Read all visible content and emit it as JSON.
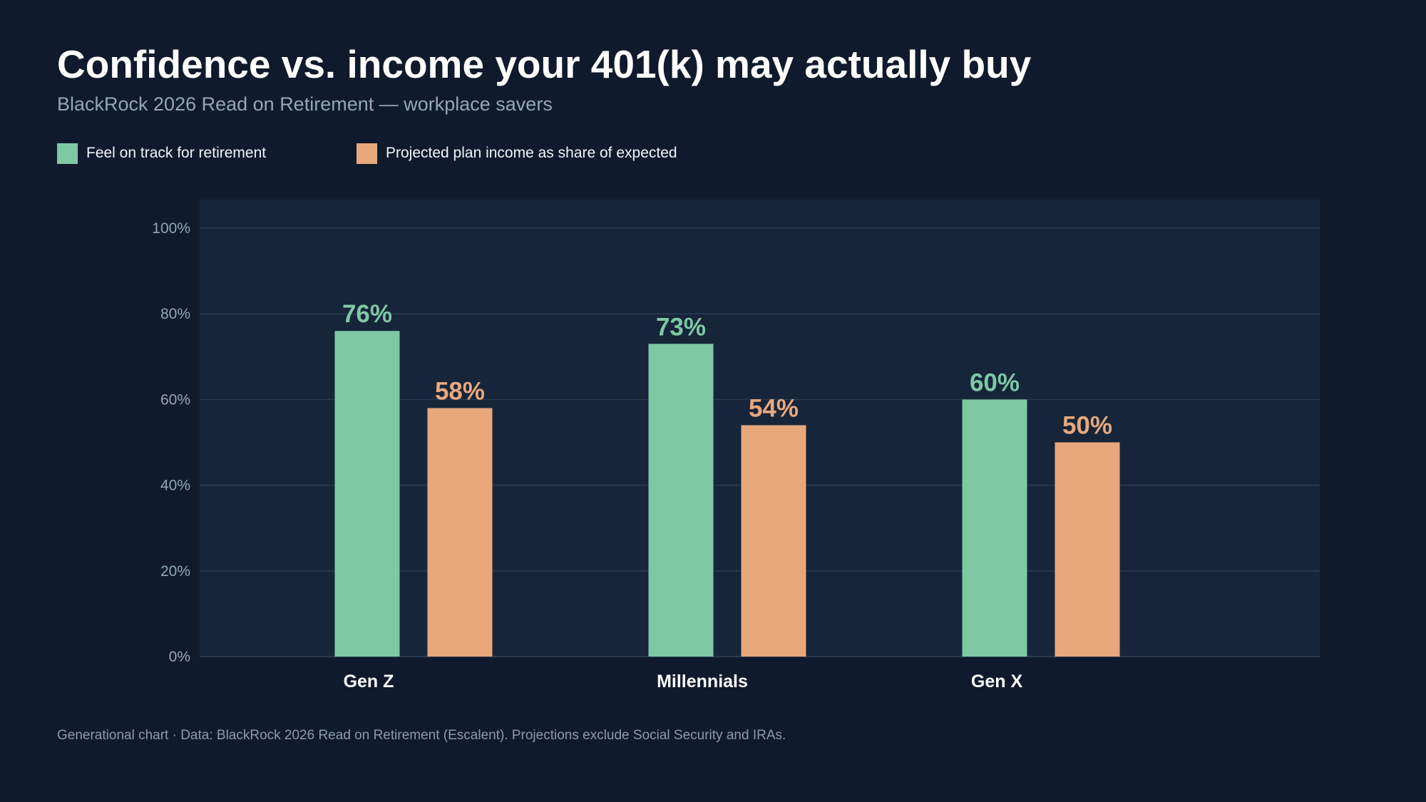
{
  "header": {
    "title": "Confidence vs. income your 401(k) may actually buy",
    "subtitle": "BlackRock 2026 Read on Retirement — workplace savers"
  },
  "legend": {
    "confidence_label": "Feel on track for retirement",
    "income_label": "Projected plan income as share of expected"
  },
  "colors": {
    "page_background": "#0f1b2c",
    "plot_background": "#16253a",
    "confidence": "#7ec8a4",
    "income": "#e8a87c",
    "gridline": "#2a3a50",
    "tick_label": "#93a6bd"
  },
  "chart_data": {
    "type": "bar",
    "title": "Confidence vs. income your 401(k) may actually buy",
    "subtitle": "BlackRock 2026 Read on Retirement — workplace savers",
    "categories": [
      "Gen Z",
      "Millennials",
      "Gen X"
    ],
    "series": [
      {
        "name": "Feel on track for retirement",
        "values": [
          76,
          73,
          60
        ],
        "labels": [
          "76%",
          "73%",
          "60%"
        ],
        "color": "#7ec8a4"
      },
      {
        "name": "Projected plan income as share of expected",
        "values": [
          58,
          54,
          50
        ],
        "labels": [
          "58%",
          "54%",
          "50%"
        ],
        "color": "#e8a87c"
      }
    ],
    "ylim": [
      0,
      100
    ],
    "yticks": [
      0,
      20,
      40,
      60,
      80,
      100
    ],
    "ytick_labels": [
      "0%",
      "20%",
      "40%",
      "60%",
      "80%",
      "100%"
    ],
    "grid": true,
    "legend_position": "top-left"
  },
  "footer": {
    "note": "Generational chart · Data: BlackRock 2026 Read on Retirement (Escalent). Projections exclude Social Security and IRAs."
  }
}
